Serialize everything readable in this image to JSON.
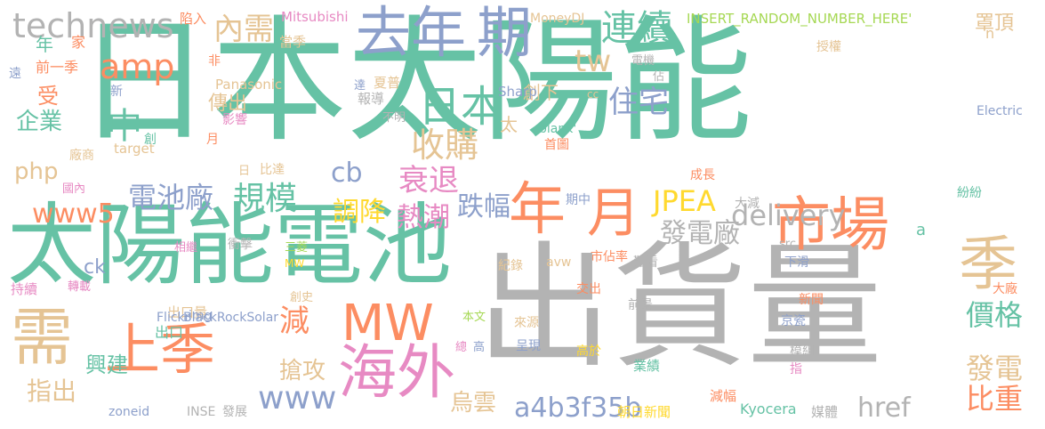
{
  "colors": {
    "teal": "#66c2a5",
    "orange": "#fc8d62",
    "blue": "#8da0cb",
    "pink": "#e78ac3",
    "green": "#a6d854",
    "yellow": "#ffd92f",
    "tan": "#e5c494",
    "gray": "#b3b3b3"
  },
  "words": [
    {
      "text": "日本太陽能",
      "color": "#66c2a5"
    },
    {
      "text": "出貨量",
      "color": "#b3b3b3"
    },
    {
      "text": "太陽能電池",
      "color": "#66c2a5"
    },
    {
      "text": "上季",
      "color": "#fc8d62"
    },
    {
      "text": "需",
      "color": "#e5c494"
    },
    {
      "text": "季",
      "color": "#e5c494"
    },
    {
      "text": "年",
      "color": "#fc8d62"
    },
    {
      "text": "月",
      "color": "#fc8d62"
    },
    {
      "text": "市場",
      "color": "#fc8d62"
    },
    {
      "text": "海外",
      "color": "#e78ac3"
    },
    {
      "text": "去年",
      "color": "#8da0cb"
    },
    {
      "text": "期",
      "color": "#8da0cb"
    },
    {
      "text": "MW",
      "color": "#fc8d62"
    },
    {
      "text": "technews",
      "color": "#b3b3b3"
    },
    {
      "text": "日本",
      "color": "#66c2a5"
    },
    {
      "text": "連續",
      "color": "#66c2a5"
    },
    {
      "text": "amp",
      "color": "#fc8d62"
    },
    {
      "text": "中",
      "color": "#66c2a5"
    },
    {
      "text": "內需",
      "color": "#e5c494"
    },
    {
      "text": "tw",
      "color": "#e5c494"
    },
    {
      "text": "住宅",
      "color": "#8da0cb"
    },
    {
      "text": "收購",
      "color": "#e5c494"
    },
    {
      "text": "衰退",
      "color": "#e78ac3"
    },
    {
      "text": "規模",
      "color": "#66c2a5"
    },
    {
      "text": "電池廠",
      "color": "#8da0cb"
    },
    {
      "text": "www5",
      "color": "#fc8d62"
    },
    {
      "text": "JPEA",
      "color": "#ffd92f"
    },
    {
      "text": "delivery",
      "color": "#b3b3b3"
    },
    {
      "text": "發電廠",
      "color": "#b3b3b3"
    },
    {
      "text": "調降",
      "color": "#ffd92f"
    },
    {
      "text": "熱潮",
      "color": "#e78ac3"
    },
    {
      "text": "跌幅",
      "color": "#8da0cb"
    },
    {
      "text": "減",
      "color": "#fc8d62"
    },
    {
      "text": "cb",
      "color": "#8da0cb"
    },
    {
      "text": "www",
      "color": "#8da0cb"
    },
    {
      "text": "價格",
      "color": "#66c2a5"
    },
    {
      "text": "發電",
      "color": "#e5c494"
    },
    {
      "text": "比重",
      "color": "#fc8d62"
    },
    {
      "text": "興建",
      "color": "#66c2a5"
    },
    {
      "text": "指出",
      "color": "#e5c494"
    },
    {
      "text": "搶攻",
      "color": "#e5c494"
    },
    {
      "text": "a4b3f35b",
      "color": "#8da0cb"
    },
    {
      "text": "href",
      "color": "#b3b3b3"
    },
    {
      "text": "烏雲",
      "color": "#e5c494"
    },
    {
      "text": "企業",
      "color": "#66c2a5"
    },
    {
      "text": "php",
      "color": "#e5c494"
    },
    {
      "text": "受",
      "color": "#fc8d62"
    },
    {
      "text": "年",
      "color": "#66c2a5"
    },
    {
      "text": "家",
      "color": "#fc8d62"
    },
    {
      "text": "前一季",
      "color": "#fc8d62"
    },
    {
      "text": "傳出",
      "color": "#e5c494"
    },
    {
      "text": "創下",
      "color": "#e5c494"
    },
    {
      "text": "太",
      "color": "#e5c494"
    },
    {
      "text": "罩頂",
      "color": "#e5c494"
    },
    {
      "text": "n",
      "color": "#e5c494"
    },
    {
      "text": "INSERT_RANDOM_NUMBER_HERE'",
      "color": "#a6d854"
    },
    {
      "text": "Mitsubishi",
      "color": "#e78ac3"
    },
    {
      "text": "陷入",
      "color": "#fc8d62"
    },
    {
      "text": "MoneyDJ",
      "color": "#e5c494"
    },
    {
      "text": "當季",
      "color": "#e5c494"
    },
    {
      "text": "Panasonic",
      "color": "#e5c494"
    },
    {
      "text": "夏普",
      "color": "#e5c494"
    },
    {
      "text": "報導",
      "color": "#b3b3b3"
    },
    {
      "text": "不明",
      "color": "#b3b3b3"
    },
    {
      "text": "影響",
      "color": "#e78ac3"
    },
    {
      "text": "target",
      "color": "#e5c494"
    },
    {
      "text": "Sharp",
      "color": "#8da0cb"
    },
    {
      "text": "blank'",
      "color": "#66c2a5"
    },
    {
      "text": "首圖",
      "color": "#fc8d62"
    },
    {
      "text": "cc",
      "color": "#e5c494"
    },
    {
      "text": "電機",
      "color": "#b3b3b3"
    },
    {
      "text": "授權",
      "color": "#e5c494"
    },
    {
      "text": "Electric",
      "color": "#8da0cb"
    },
    {
      "text": "佔",
      "color": "#b3b3b3"
    },
    {
      "text": "ck",
      "color": "#8da0cb"
    },
    {
      "text": "持續",
      "color": "#e78ac3"
    },
    {
      "text": "轉載",
      "color": "#e78ac3"
    },
    {
      "text": "國內",
      "color": "#e78ac3"
    },
    {
      "text": "衝擊",
      "color": "#b3b3b3"
    },
    {
      "text": "相繼",
      "color": "#e78ac3"
    },
    {
      "text": "三菱",
      "color": "#a6d854"
    },
    {
      "text": "MW",
      "color": "#ffd92f"
    },
    {
      "text": "創史",
      "color": "#e5c494"
    },
    {
      "text": "出口量",
      "color": "#e5c494"
    },
    {
      "text": "出口",
      "color": "#66c2a5"
    },
    {
      "text": "img",
      "color": "#8da0cb"
    },
    {
      "text": "Flickr",
      "color": "#8da0cb"
    },
    {
      "text": "BlackRockSolar",
      "color": "#8da0cb"
    },
    {
      "text": "zoneid",
      "color": "#8da0cb"
    },
    {
      "text": "INSE",
      "color": "#b3b3b3"
    },
    {
      "text": "發展",
      "color": "#b3b3b3"
    },
    {
      "text": "總",
      "color": "#e78ac3"
    },
    {
      "text": "高",
      "color": "#8da0cb"
    },
    {
      "text": "本文",
      "color": "#a6d854"
    },
    {
      "text": "來源",
      "color": "#e5c494"
    },
    {
      "text": "呈現",
      "color": "#8da0cb"
    },
    {
      "text": "高於",
      "color": "#ffd92f"
    },
    {
      "text": "業績",
      "color": "#66c2a5"
    },
    {
      "text": "朝日新聞",
      "color": "#ffd92f"
    },
    {
      "text": "減幅",
      "color": "#fc8d62"
    },
    {
      "text": "Kyocera",
      "color": "#66c2a5"
    },
    {
      "text": "媒體",
      "color": "#b3b3b3"
    },
    {
      "text": "京瓷",
      "color": "#8da0cb"
    },
    {
      "text": "模組",
      "color": "#b3b3b3"
    },
    {
      "text": "指",
      "color": "#e78ac3"
    },
    {
      "text": "前景",
      "color": "#b3b3b3"
    },
    {
      "text": "新聞",
      "color": "#fc8d62"
    },
    {
      "text": "大廠",
      "color": "#fc8d62"
    },
    {
      "text": "下滑",
      "color": "#8da0cb"
    },
    {
      "text": "src",
      "color": "#b3b3b3"
    },
    {
      "text": "紛紛",
      "color": "#66c2a5"
    },
    {
      "text": "avw",
      "color": "#e5c494"
    },
    {
      "text": "市佔率",
      "color": "#fc8d62"
    },
    {
      "text": "難看",
      "color": "#b3b3b3"
    },
    {
      "text": "紀錄",
      "color": "#e5c494"
    },
    {
      "text": "成長",
      "color": "#fc8d62"
    },
    {
      "text": "期中",
      "color": "#8da0cb"
    },
    {
      "text": "大減",
      "color": "#b3b3b3"
    },
    {
      "text": "交出",
      "color": "#fc8d62"
    },
    {
      "text": "遠",
      "color": "#8da0cb"
    },
    {
      "text": "新",
      "color": "#8da0cb"
    },
    {
      "text": "非",
      "color": "#fc8d62"
    },
    {
      "text": "達",
      "color": "#8da0cb"
    },
    {
      "text": "月",
      "color": "#fc8d62"
    },
    {
      "text": "創",
      "color": "#66c2a5"
    },
    {
      "text": "廠商",
      "color": "#e5c494"
    },
    {
      "text": "日",
      "color": "#e5c494"
    },
    {
      "text": "比達",
      "color": "#e5c494"
    },
    {
      "text": "a",
      "color": "#66c2a5"
    }
  ]
}
